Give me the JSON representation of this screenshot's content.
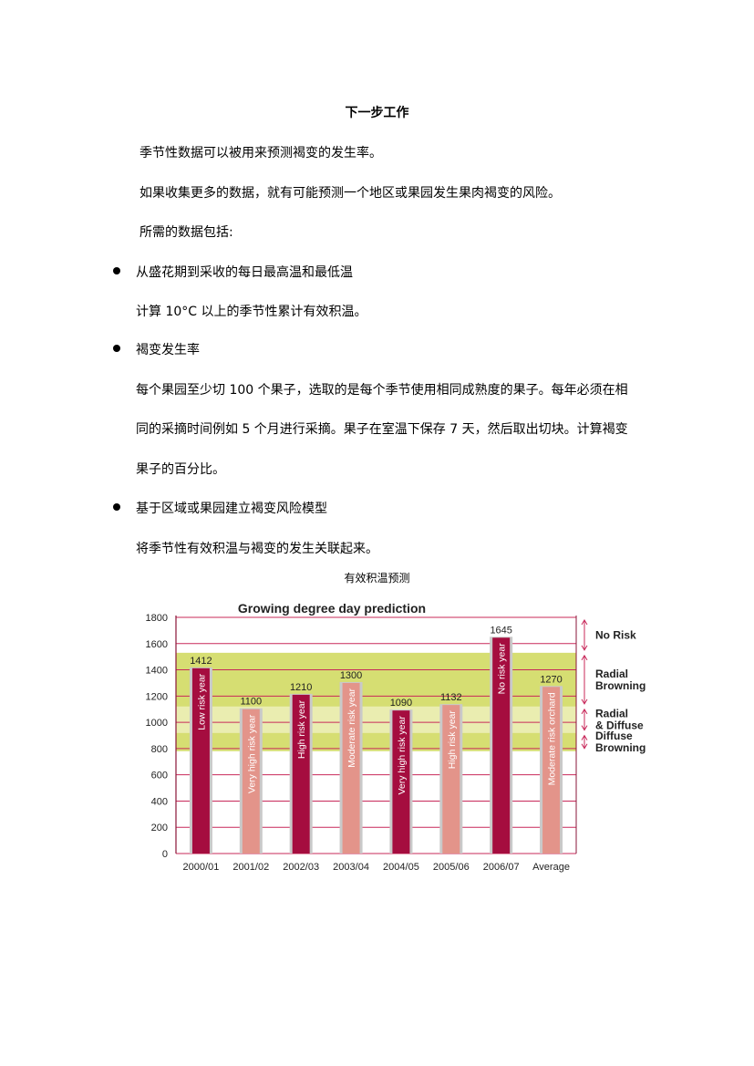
{
  "doc": {
    "title": "下一步工作",
    "intro": [
      "季节性数据可以被用来预测褐变的发生率。",
      "如果收集更多的数据，就有可能预测一个地区或果园发生果肉褐变的风险。",
      "所需的数据包括:"
    ],
    "bullets": [
      {
        "heading": "从盛花期到采收的每日最高温和最低温",
        "lines": [
          "计算 10°C 以上的季节性累计有效积温。"
        ]
      },
      {
        "heading": "褐变发生率",
        "lines": [
          "每个果园至少切 100 个果子，选取的是每个季节使用相同成熟度的果子。每年必须在相",
          "同的采摘时间例如 5 个月进行采摘。果子在室温下保存 7 天，然后取出切块。计算褐变",
          "果子的百分比。"
        ]
      },
      {
        "heading": "基于区域或果园建立褐变风险模型",
        "lines": [
          "将季节性有效积温与褐变的发生关联起来。"
        ]
      }
    ],
    "caption": "有效积温预测"
  },
  "chart_data": {
    "type": "bar",
    "title": "Growing degree day prediction",
    "categories": [
      "2000/01",
      "2001/02",
      "2002/03",
      "2003/04",
      "2004/05",
      "2005/06",
      "2006/07",
      "Average"
    ],
    "values": [
      1412,
      1100,
      1210,
      1300,
      1090,
      1132,
      1645,
      1270
    ],
    "value_labels": [
      "1412",
      "1100",
      "1210",
      "1300",
      "1090",
      "1132",
      "1645",
      "1270"
    ],
    "bar_text": [
      "Low risk year",
      "Very high risk year",
      "High risk year",
      "Moderate risk year",
      "Very high risk year",
      "High risk year",
      "No risk year",
      "Moderate risk orchard"
    ],
    "bar_style": [
      "dark",
      "light",
      "dark",
      "light",
      "dark",
      "light",
      "dark",
      "light"
    ],
    "yticks": [
      0,
      200,
      400,
      600,
      800,
      1000,
      1200,
      1400,
      1600,
      1800
    ],
    "ylim": [
      0,
      1800
    ],
    "grid": true,
    "colors": {
      "dark": "#a50d3f",
      "light": "#e3948a",
      "grid": "#c8285a",
      "band_dark": "#d6de72",
      "band_light": "#eaedb0"
    },
    "bands": [
      {
        "from": 780,
        "to": 920,
        "shade": "band_dark"
      },
      {
        "from": 920,
        "to": 1120,
        "shade": "band_light"
      },
      {
        "from": 1120,
        "to": 1530,
        "shade": "band_dark"
      }
    ],
    "zones": [
      {
        "label": [
          "No Risk"
        ],
        "from": 1530,
        "to": 1800
      },
      {
        "label": [
          "Radial",
          "Browning"
        ],
        "from": 1120,
        "to": 1530
      },
      {
        "label": [
          "Radial",
          "& Diffuse"
        ],
        "from": 920,
        "to": 1120
      },
      {
        "label": [
          "Diffuse",
          "Browning"
        ],
        "from": 780,
        "to": 920
      }
    ]
  }
}
